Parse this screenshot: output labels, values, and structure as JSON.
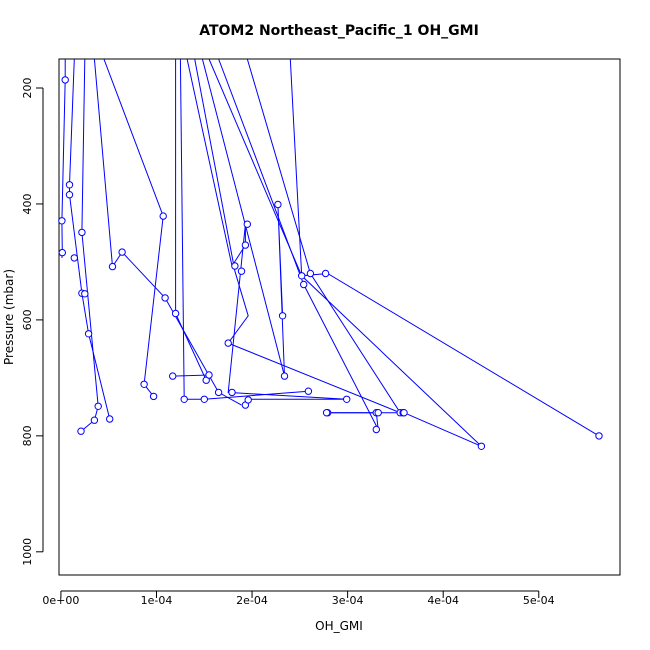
{
  "chart_data": {
    "type": "scatter",
    "title": "ATOM2 Northeast_Pacific_1 OH_GMI",
    "xlabel": "OH_GMI",
    "ylabel": "Pressure (mbar)",
    "xlim": [
      -2e-06,
      0.000585
    ],
    "ylim": [
      1040,
      150
    ],
    "y_reversed": true,
    "x_ticks": [
      {
        "value": 0,
        "label": "0e+00"
      },
      {
        "value": 0.0001,
        "label": "1e-04"
      },
      {
        "value": 0.0002,
        "label": "2e-04"
      },
      {
        "value": 0.0003,
        "label": "3e-04"
      },
      {
        "value": 0.0004,
        "label": "4e-04"
      },
      {
        "value": 0.0005,
        "label": "5e-04"
      }
    ],
    "y_ticks": [
      {
        "value": 200,
        "label": "200"
      },
      {
        "value": 400,
        "label": "400"
      },
      {
        "value": 600,
        "label": "600"
      },
      {
        "value": 800,
        "label": "800"
      },
      {
        "value": 1000,
        "label": "1000"
      }
    ],
    "grid": false,
    "legend": "none",
    "color": "#0000ff",
    "x": [
      4.5e-06,
      1e-06,
      1.5e-06,
      1.4e-05,
      9e-06,
      9e-06,
      2.2e-05,
      2.9e-05,
      2.2e-05,
      2.1e-05,
      5.1e-05,
      3.5e-05,
      3.9e-05,
      2.5e-05,
      6.4e-05,
      5.4e-05,
      0.000107,
      0.000109,
      8.7e-05,
      0.00012,
      9.7e-05,
      0.000117,
      0.000129,
      0.00015,
      0.000152,
      0.000155,
      0.000165,
      0.000175,
      0.000179,
      0.000182,
      0.000189,
      0.000193,
      0.000195,
      0.000193,
      0.000196,
      0.000227,
      0.000232,
      0.000234,
      0.000252,
      0.000254,
      0.000261,
      0.000259,
      0.000277,
      0.000279,
      0.000278,
      0.000299,
      0.00033,
      0.00033,
      0.000332,
      0.000355,
      0.000358,
      0.000359,
      0.00044,
      0.000563
    ],
    "y": [
      186,
      429,
      484,
      493,
      367,
      384,
      449,
      624,
      554,
      792,
      771,
      773,
      749,
      555,
      483,
      508,
      421,
      562,
      711,
      589,
      732,
      697,
      737,
      737,
      704,
      695,
      725,
      640,
      725,
      507,
      516,
      747,
      435,
      471,
      738,
      401,
      593,
      697,
      524,
      539,
      520,
      723,
      520,
      760,
      760,
      737,
      760,
      789,
      760,
      760,
      760,
      760,
      818,
      800
    ],
    "segments": [
      [
        [
          4.5e-06,
          150
        ],
        [
          4.5e-06,
          186
        ],
        [
          1e-06,
          429
        ],
        [
          1.5e-06,
          484
        ],
        [
          1e-06,
          493
        ]
      ],
      [
        [
          1.4e-05,
          150
        ],
        [
          9e-06,
          367
        ],
        [
          9e-06,
          384
        ],
        [
          2.2e-05,
          554
        ],
        [
          2.9e-05,
          624
        ],
        [
          5.1e-05,
          771
        ]
      ],
      [
        [
          2.5e-05,
          150
        ],
        [
          2.2e-05,
          449
        ],
        [
          3.9e-05,
          749
        ],
        [
          3.5e-05,
          773
        ],
        [
          2.1e-05,
          792
        ]
      ],
      [
        [
          3.5e-05,
          150
        ],
        [
          5.4e-05,
          508
        ],
        [
          6.4e-05,
          483
        ],
        [
          0.000109,
          562
        ],
        [
          0.000165,
          725
        ],
        [
          0.000189,
          747
        ]
      ],
      [
        [
          4.5e-05,
          150
        ],
        [
          0.000107,
          421
        ],
        [
          8.7e-05,
          711
        ],
        [
          9.7e-05,
          732
        ]
      ],
      [
        [
          0.00012,
          150
        ],
        [
          0.00012,
          589
        ],
        [
          0.000152,
          704
        ],
        [
          0.000155,
          695
        ],
        [
          0.000117,
          697
        ]
      ],
      [
        [
          0.000125,
          150
        ],
        [
          0.000129,
          737
        ],
        [
          0.00015,
          737
        ],
        [
          0.000259,
          723
        ]
      ],
      [
        [
          0.000132,
          150
        ],
        [
          0.000179,
          507
        ],
        [
          0.000193,
          471
        ],
        [
          0.000193,
          435
        ],
        [
          0.000175,
          725
        ],
        [
          0.000299,
          737
        ],
        [
          0.000195,
          737
        ]
      ],
      [
        [
          0.00014,
          150
        ],
        [
          0.000182,
          516
        ],
        [
          0.000196,
          593
        ],
        [
          0.000175,
          640
        ],
        [
          0.000355,
          760
        ],
        [
          0.000358,
          760
        ]
      ],
      [
        [
          0.000148,
          150
        ],
        [
          0.000234,
          697
        ],
        [
          0.000227,
          401
        ],
        [
          0.000232,
          593
        ]
      ],
      [
        [
          0.000155,
          150
        ],
        [
          0.000252,
          524
        ],
        [
          0.00044,
          818
        ],
        [
          0.000359,
          760
        ]
      ],
      [
        [
          0.000165,
          150
        ],
        [
          0.000254,
          539
        ],
        [
          0.000332,
          789
        ],
        [
          0.00033,
          760
        ],
        [
          0.000277,
          760
        ]
      ],
      [
        [
          0.000195,
          150
        ],
        [
          0.000261,
          520
        ],
        [
          0.000355,
          760
        ],
        [
          0.000279,
          760
        ]
      ],
      [
        [
          0.00024,
          150
        ],
        [
          0.000252,
          524
        ],
        [
          0.000279,
          520
        ],
        [
          0.000563,
          800
        ]
      ]
    ]
  }
}
